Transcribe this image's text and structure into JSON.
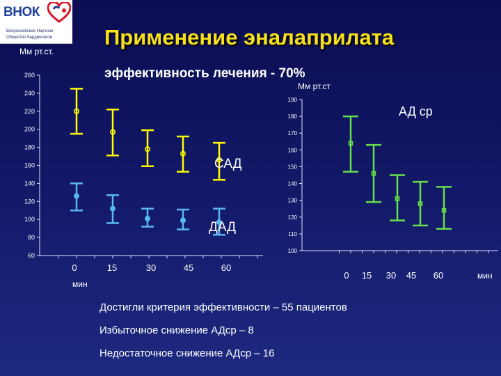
{
  "logo": {
    "text": "ВНОК",
    "line1": "Всероссийское Научное",
    "line2": "Общество Кардиологов"
  },
  "title": "Применение  эналаприлата",
  "subtitle": "эффективность лечения - 70%",
  "notes": [
    "Достигли критерия эффективности – 55 пациентов",
    "Избыточное снижение АДср – 8",
    "Недостаточное снижение АДср – 16"
  ],
  "colors": {
    "sad": "#ffff00",
    "dad": "#5ab8f0",
    "adsr": "#66e04a",
    "title": "#f7e11b"
  },
  "chart_data": [
    {
      "type": "scatter",
      "ylabel": "Мм рт.ст.",
      "xlabel": "мин",
      "ylim": [
        60,
        260
      ],
      "yticks": [
        60,
        80,
        100,
        120,
        140,
        160,
        180,
        200,
        220,
        240,
        260
      ],
      "x": [
        0,
        15,
        30,
        45,
        60
      ],
      "grid": false,
      "series": [
        {
          "name": "САД",
          "color": "#ffff00",
          "values": [
            220,
            197,
            178,
            173,
            166
          ],
          "low": [
            195,
            171,
            159,
            153,
            144
          ],
          "high": [
            245,
            222,
            199,
            192,
            185
          ]
        },
        {
          "name": "ДАД",
          "color": "#5ab8f0",
          "values": [
            126,
            112,
            101,
            99,
            97
          ],
          "low": [
            110,
            96,
            92,
            89,
            83
          ],
          "high": [
            140,
            127,
            112,
            111,
            112
          ]
        }
      ]
    },
    {
      "type": "scatter",
      "ylabel": "Мм рт.ст",
      "xlabel": "мин",
      "title": "АД ср",
      "ylim": [
        100,
        190
      ],
      "yticks": [
        100,
        110,
        120,
        130,
        140,
        150,
        160,
        170,
        180,
        190
      ],
      "x": [
        0,
        15,
        30,
        45,
        60
      ],
      "grid": false,
      "series": [
        {
          "name": "АД ср",
          "color": "#66e04a",
          "values": [
            164,
            146,
            131,
            128,
            124
          ],
          "low": [
            147,
            129,
            118,
            115,
            113
          ],
          "high": [
            180,
            163,
            145,
            141,
            138
          ]
        }
      ]
    }
  ]
}
